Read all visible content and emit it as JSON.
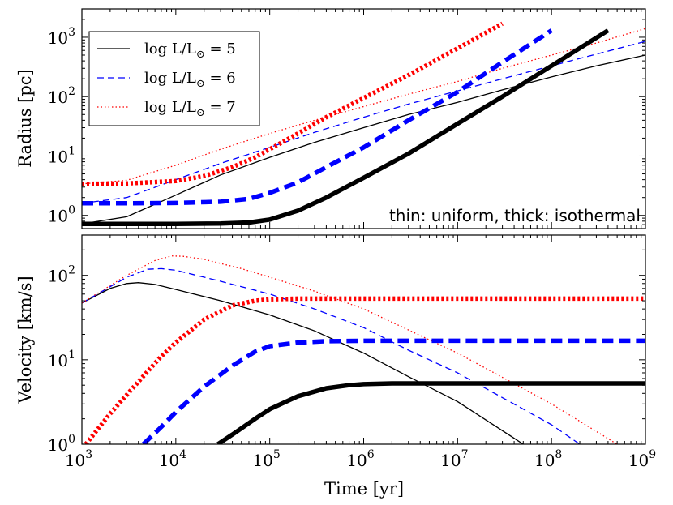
{
  "chart_data": [
    {
      "type": "line",
      "panel": "top",
      "xscale": "log",
      "yscale": "log",
      "xlim": [
        1000,
        1000000000
      ],
      "ylim": [
        0.6,
        3000
      ],
      "ylabel": "Radius [pc]",
      "yticks": [
        {
          "value": 1,
          "base": "10",
          "exp": "0"
        },
        {
          "value": 10,
          "base": "10",
          "exp": "1"
        },
        {
          "value": 100,
          "base": "10",
          "exp": "2"
        },
        {
          "value": 1000,
          "base": "10",
          "exp": "3"
        }
      ],
      "annotation": "thin: uniform, thick: isothermal",
      "series": [
        {
          "name": "r-uniform-L5",
          "legend": "5",
          "color": "#000000",
          "style": "solid",
          "width": 1.3,
          "x": [
            1000,
            3000,
            10000,
            30000,
            100000,
            300000,
            1000000,
            3000000,
            10000000,
            30000000,
            100000000,
            300000000,
            1000000000
          ],
          "y": [
            0.72,
            0.95,
            2.2,
            4.8,
            9.5,
            17,
            30,
            50,
            80,
            130,
            215,
            330,
            500
          ]
        },
        {
          "name": "r-uniform-L6",
          "legend": "6",
          "color": "#0000ff",
          "style": "dashed",
          "width": 1.3,
          "x": [
            1000,
            3000,
            10000,
            30000,
            100000,
            300000,
            1000000,
            3000000,
            10000000,
            30000000,
            100000000,
            300000000,
            1000000000
          ],
          "y": [
            1.6,
            2.0,
            4.0,
            7.5,
            14,
            25,
            45,
            75,
            125,
            200,
            330,
            520,
            850
          ]
        },
        {
          "name": "r-uniform-L7",
          "legend": "7",
          "color": "#ff0000",
          "style": "dotted",
          "width": 1.3,
          "x": [
            1000,
            3000,
            10000,
            30000,
            100000,
            300000,
            1000000,
            3000000,
            10000000,
            30000000,
            100000000,
            300000000,
            1000000000
          ],
          "y": [
            3.4,
            3.9,
            7.0,
            13,
            24,
            40,
            68,
            110,
            180,
            300,
            500,
            800,
            1400
          ]
        },
        {
          "name": "r-iso-L5",
          "color": "#000000",
          "style": "solid",
          "width": 5.5,
          "x": [
            1000,
            10000,
            30000,
            60000,
            100000,
            200000,
            400000,
            1000000,
            3000000,
            10000000,
            30000000,
            100000000,
            400000000
          ],
          "y": [
            0.72,
            0.72,
            0.73,
            0.76,
            0.85,
            1.2,
            2.0,
            4.3,
            11,
            35,
            100,
            330,
            1300
          ]
        },
        {
          "name": "r-iso-L6",
          "color": "#0000ff",
          "style": "dashed",
          "width": 5.5,
          "x": [
            1000,
            3000,
            10000,
            30000,
            60000,
            100000,
            200000,
            400000,
            1000000,
            3000000,
            10000000,
            30000000,
            100000000
          ],
          "y": [
            1.6,
            1.6,
            1.62,
            1.7,
            1.9,
            2.4,
            3.6,
            6.5,
            14,
            40,
            120,
            380,
            1300
          ]
        },
        {
          "name": "r-iso-L7",
          "color": "#ff0000",
          "style": "dotted",
          "width": 5.5,
          "x": [
            1000,
            3000,
            10000,
            20000,
            40000,
            70000,
            100000,
            200000,
            400000,
            1000000,
            3000000,
            10000000,
            30000000
          ],
          "y": [
            3.4,
            3.45,
            3.8,
            4.6,
            6.5,
            9.5,
            13,
            24,
            45,
            95,
            230,
            650,
            1700
          ]
        }
      ]
    },
    {
      "type": "line",
      "panel": "bottom",
      "xscale": "log",
      "yscale": "log",
      "xlim": [
        1000,
        1000000000
      ],
      "ylim": [
        1,
        300
      ],
      "xlabel": "Time [yr]",
      "ylabel": "Velocity [km/s]",
      "xticks": [
        {
          "value": 1000,
          "base": "10",
          "exp": "3"
        },
        {
          "value": 10000,
          "base": "10",
          "exp": "4"
        },
        {
          "value": 100000,
          "base": "10",
          "exp": "5"
        },
        {
          "value": 1000000,
          "base": "10",
          "exp": "6"
        },
        {
          "value": 10000000,
          "base": "10",
          "exp": "7"
        },
        {
          "value": 100000000,
          "base": "10",
          "exp": "8"
        },
        {
          "value": 1000000000,
          "base": "10",
          "exp": "9"
        }
      ],
      "yticks": [
        {
          "value": 1,
          "base": "10",
          "exp": "0"
        },
        {
          "value": 10,
          "base": "10",
          "exp": "1"
        },
        {
          "value": 100,
          "base": "10",
          "exp": "2"
        }
      ],
      "series": [
        {
          "name": "v-uniform-L5",
          "color": "#000000",
          "style": "solid",
          "width": 1.3,
          "x": [
            1000,
            2000,
            3000,
            4000,
            6000,
            10000,
            30000,
            100000,
            300000,
            1000000,
            3000000,
            10000000,
            50000000
          ],
          "y": [
            47,
            70,
            80,
            82,
            78,
            68,
            50,
            34,
            22,
            12,
            6.3,
            3.2,
            1.0
          ]
        },
        {
          "name": "v-uniform-L6",
          "color": "#0000ff",
          "style": "dashed",
          "width": 1.3,
          "x": [
            1000,
            3000,
            5000,
            7000,
            10000,
            30000,
            100000,
            300000,
            1000000,
            3000000,
            10000000,
            100000000,
            200000000
          ],
          "y": [
            47,
            95,
            118,
            120,
            115,
            85,
            60,
            40,
            24,
            13,
            7,
            1.7,
            1.0
          ]
        },
        {
          "name": "v-uniform-L7",
          "color": "#ff0000",
          "style": "dotted",
          "width": 1.3,
          "x": [
            1000,
            3000,
            6000,
            9000,
            12000,
            20000,
            50000,
            100000,
            300000,
            1000000,
            10000000,
            100000000,
            500000000
          ],
          "y": [
            47,
            100,
            150,
            170,
            168,
            155,
            120,
            95,
            65,
            40,
            12,
            3.0,
            1.0
          ]
        },
        {
          "name": "v-iso-L5",
          "color": "#000000",
          "style": "solid",
          "width": 5.5,
          "x": [
            28000,
            40000,
            70000,
            100000,
            200000,
            400000,
            700000,
            1000000,
            2000000,
            5000000,
            20000000,
            100000000,
            1000000000
          ],
          "y": [
            1.0,
            1.3,
            2.0,
            2.6,
            3.7,
            4.6,
            5.0,
            5.15,
            5.25,
            5.25,
            5.25,
            5.25,
            5.25
          ]
        },
        {
          "name": "v-iso-L6",
          "color": "#0000ff",
          "style": "dashed",
          "width": 5.5,
          "x": [
            4500,
            7000,
            10000,
            20000,
            40000,
            70000,
            100000,
            200000,
            400000,
            1000000,
            5000000,
            100000000,
            1000000000
          ],
          "y": [
            1.0,
            1.6,
            2.4,
            4.8,
            8.5,
            12.5,
            14.5,
            16.0,
            16.6,
            16.8,
            16.8,
            16.8,
            16.8
          ]
        },
        {
          "name": "v-iso-L7",
          "color": "#ff0000",
          "style": "dotted",
          "width": 5.5,
          "x": [
            1100,
            2000,
            4000,
            7000,
            10000,
            20000,
            40000,
            70000,
            100000,
            200000,
            400000,
            1000000,
            1000000000
          ],
          "y": [
            1.0,
            2.3,
            5.5,
            11,
            16,
            30,
            44,
            50,
            52,
            53,
            53,
            53,
            53
          ]
        }
      ]
    }
  ],
  "legend": [
    {
      "prefix": "log L/L",
      "sun": "⊙",
      "eq": " = ",
      "value": "5",
      "color": "#000000",
      "style": "solid"
    },
    {
      "prefix": "log L/L",
      "sun": "⊙",
      "eq": " = ",
      "value": "6",
      "color": "#0000ff",
      "style": "dashed"
    },
    {
      "prefix": "log L/L",
      "sun": "⊙",
      "eq": " = ",
      "value": "7",
      "color": "#ff0000",
      "style": "dotted"
    }
  ]
}
